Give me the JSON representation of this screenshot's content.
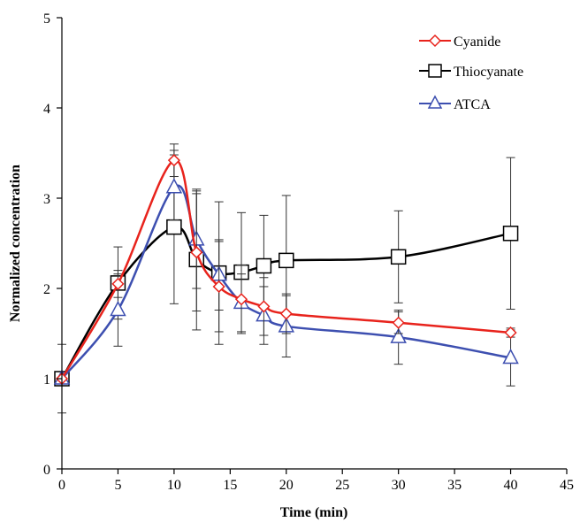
{
  "chart_data": {
    "type": "line",
    "title": "",
    "xlabel": "Time (min)",
    "ylabel": "Normalized concentration",
    "xlim": [
      0,
      45
    ],
    "ylim": [
      0,
      5
    ],
    "xticks": [
      0,
      5,
      10,
      15,
      20,
      25,
      30,
      35,
      40,
      45
    ],
    "yticks": [
      0,
      1,
      2,
      3,
      4,
      5
    ],
    "grid": false,
    "legend_position": "top-right",
    "series": [
      {
        "name": "Cyanide",
        "color": "#e8231c",
        "marker": "diamond",
        "x": [
          0,
          5,
          10,
          12,
          14,
          16,
          18,
          20,
          30,
          40
        ],
        "y": [
          1.0,
          2.05,
          3.42,
          2.4,
          2.02,
          1.88,
          1.8,
          1.72,
          1.62,
          1.51
        ],
        "error": [
          0.38,
          0.15,
          0.18,
          0.65,
          0.5,
          0.38,
          0.32,
          0.22,
          0.12,
          0.05
        ]
      },
      {
        "name": "Thiocyanate",
        "color": "#000000",
        "marker": "square",
        "x": [
          0,
          5,
          10,
          12,
          14,
          16,
          18,
          20,
          30,
          40
        ],
        "y": [
          1.0,
          2.06,
          2.68,
          2.32,
          2.17,
          2.18,
          2.25,
          2.31,
          2.35,
          2.61
        ],
        "error": [
          0.0,
          0.4,
          0.85,
          0.78,
          0.79,
          0.66,
          0.56,
          0.72,
          0.51,
          0.84
        ]
      },
      {
        "name": "ATCA",
        "color": "#3d4fb0",
        "marker": "triangle",
        "x": [
          0,
          5,
          10,
          12,
          14,
          16,
          18,
          20,
          30,
          40
        ],
        "y": [
          1.0,
          1.76,
          3.12,
          2.54,
          2.15,
          1.84,
          1.7,
          1.58,
          1.46,
          1.23
        ],
        "error": [
          0.0,
          0.4,
          0.36,
          0.54,
          0.39,
          0.32,
          0.32,
          0.34,
          0.3,
          0.31
        ]
      }
    ]
  }
}
